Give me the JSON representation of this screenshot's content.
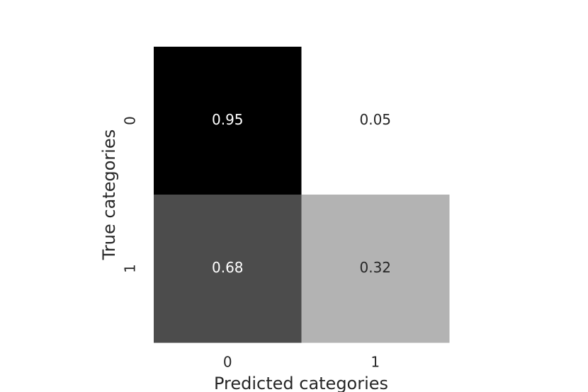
{
  "chart_data": {
    "type": "heatmap",
    "xlabel": "Predicted categories",
    "ylabel": "True categories",
    "x_categories": [
      "0",
      "1"
    ],
    "y_categories": [
      "0",
      "1"
    ],
    "values": [
      [
        0.95,
        0.05
      ],
      [
        0.68,
        0.32
      ]
    ],
    "cmap": "Greys"
  }
}
